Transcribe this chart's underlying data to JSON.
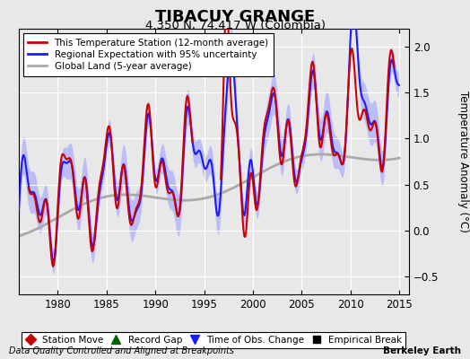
{
  "title": "TIBACUY GRANGE",
  "subtitle": "4.350 N, 74.417 W (Colombia)",
  "ylabel": "Temperature Anomaly (°C)",
  "xlabel_left": "Data Quality Controlled and Aligned at Breakpoints",
  "xlabel_right": "Berkeley Earth",
  "ylim": [
    -0.7,
    2.2
  ],
  "xlim": [
    1976,
    2016
  ],
  "xticks": [
    1980,
    1985,
    1990,
    1995,
    2000,
    2005,
    2010,
    2015
  ],
  "yticks": [
    -0.5,
    0,
    0.5,
    1.0,
    1.5,
    2.0
  ],
  "bg_color": "#e8e8e8",
  "plot_bg_color": "#e8e8e8",
  "grid_color": "#ffffff",
  "station_color": "#cc0000",
  "regional_color": "#1a1aff",
  "uncertainty_color": "#aaaaff",
  "global_color": "#aaaaaa",
  "legend_items": [
    "This Temperature Station (12-month average)",
    "Regional Expectation with 95% uncertainty",
    "Global Land (5-year average)"
  ],
  "marker_legend": [
    {
      "label": "Station Move",
      "color": "#cc0000",
      "marker": "D"
    },
    {
      "label": "Record Gap",
      "color": "#006600",
      "marker": "^"
    },
    {
      "label": "Time of Obs. Change",
      "color": "#1a1aff",
      "marker": "v"
    },
    {
      "label": "Empirical Break",
      "color": "#000000",
      "marker": "s"
    }
  ]
}
